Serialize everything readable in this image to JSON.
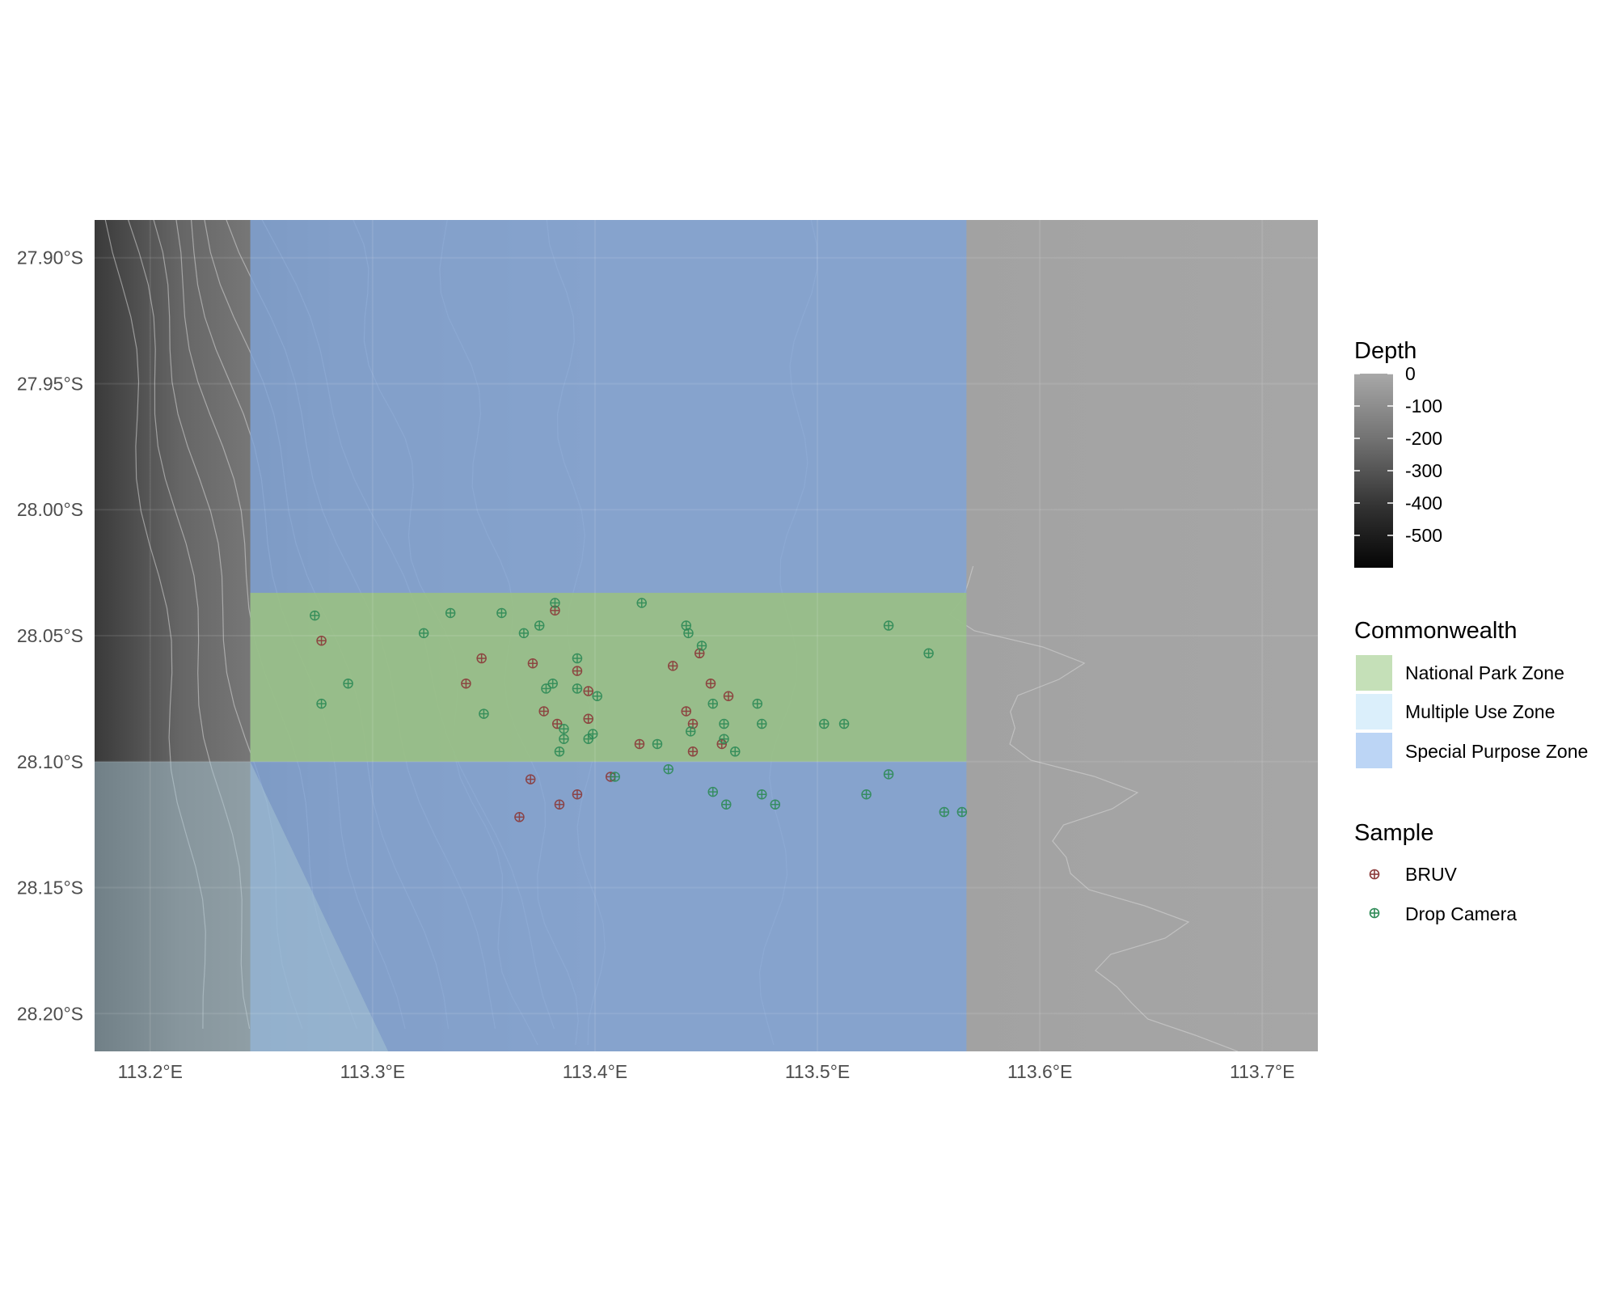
{
  "map": {
    "xlim": [
      113.175,
      113.725
    ],
    "ylim": [
      -28.215,
      -27.885
    ],
    "x_ticks": [
      {
        "value": 113.2,
        "label": "113.2°E"
      },
      {
        "value": 113.3,
        "label": "113.3°E"
      },
      {
        "value": 113.4,
        "label": "113.4°E"
      },
      {
        "value": 113.5,
        "label": "113.5°E"
      },
      {
        "value": 113.6,
        "label": "113.6°E"
      },
      {
        "value": 113.7,
        "label": "113.7°E"
      }
    ],
    "y_ticks": [
      {
        "value": -27.9,
        "label": "27.90°S"
      },
      {
        "value": -27.95,
        "label": "27.95°S"
      },
      {
        "value": -28.0,
        "label": "28.00°S"
      },
      {
        "value": -28.05,
        "label": "28.05°S"
      },
      {
        "value": -28.1,
        "label": "28.10°S"
      },
      {
        "value": -28.15,
        "label": "28.15°S"
      },
      {
        "value": -28.2,
        "label": "28.20°S"
      }
    ],
    "grid": true
  },
  "zones": {
    "special_purpose": {
      "lon": [
        113.245,
        113.567
      ],
      "lat": [
        -28.215,
        -27.885
      ],
      "color": "#7fa4d8"
    },
    "national_park": {
      "lon": [
        113.245,
        113.567
      ],
      "lat": [
        -28.1,
        -28.033
      ],
      "color": "#9bc27f"
    },
    "west_overlay": {
      "polygon": [
        [
          113.175,
          -28.1
        ],
        [
          113.245,
          -28.1
        ],
        [
          113.307,
          -28.215
        ],
        [
          113.175,
          -28.215
        ]
      ],
      "color": "#a8c6d4"
    }
  },
  "legend": {
    "depth": {
      "title": "Depth",
      "labels": [
        "0",
        "-100",
        "-200",
        "-300",
        "-400",
        "-500"
      ],
      "values": [
        0,
        -100,
        -200,
        -300,
        -400,
        -500
      ],
      "range": [
        -600,
        0
      ]
    },
    "commonwealth": {
      "title": "Commonwealth",
      "items": [
        {
          "label": "National Park Zone",
          "color": "#c5e0b8"
        },
        {
          "label": "Multiple Use Zone",
          "color": "#dbeffb"
        },
        {
          "label": "Special Purpose Zone",
          "color": "#bcd5f5"
        }
      ]
    },
    "sample": {
      "title": "Sample",
      "items": [
        {
          "label": "BRUV",
          "color": "#8b3a3a"
        },
        {
          "label": "Drop Camera",
          "color": "#2e8b57"
        }
      ]
    }
  },
  "samples": {
    "bruv": [
      [
        113.277,
        -28.052
      ],
      [
        113.342,
        -28.069
      ],
      [
        113.349,
        -28.059
      ],
      [
        113.372,
        -28.061
      ],
      [
        113.377,
        -28.08
      ],
      [
        113.383,
        -28.085
      ],
      [
        113.392,
        -28.064
      ],
      [
        113.397,
        -28.083
      ],
      [
        113.397,
        -28.072
      ],
      [
        113.382,
        -28.04
      ],
      [
        113.371,
        -28.107
      ],
      [
        113.384,
        -28.117
      ],
      [
        113.392,
        -28.113
      ],
      [
        113.366,
        -28.122
      ],
      [
        113.407,
        -28.106
      ],
      [
        113.42,
        -28.093
      ],
      [
        113.435,
        -28.062
      ],
      [
        113.441,
        -28.08
      ],
      [
        113.444,
        -28.085
      ],
      [
        113.444,
        -28.096
      ],
      [
        113.447,
        -28.057
      ],
      [
        113.452,
        -28.069
      ],
      [
        113.457,
        -28.093
      ],
      [
        113.46,
        -28.074
      ]
    ],
    "drop_camera": [
      [
        113.274,
        -28.042
      ],
      [
        113.277,
        -28.077
      ],
      [
        113.289,
        -28.069
      ],
      [
        113.323,
        -28.049
      ],
      [
        113.335,
        -28.041
      ],
      [
        113.35,
        -28.081
      ],
      [
        113.358,
        -28.041
      ],
      [
        113.368,
        -28.049
      ],
      [
        113.375,
        -28.046
      ],
      [
        113.378,
        -28.071
      ],
      [
        113.381,
        -28.069
      ],
      [
        113.382,
        -28.037
      ],
      [
        113.384,
        -28.096
      ],
      [
        113.386,
        -28.087
      ],
      [
        113.386,
        -28.091
      ],
      [
        113.392,
        -28.059
      ],
      [
        113.392,
        -28.071
      ],
      [
        113.397,
        -28.091
      ],
      [
        113.399,
        -28.089
      ],
      [
        113.401,
        -28.074
      ],
      [
        113.409,
        -28.106
      ],
      [
        113.421,
        -28.037
      ],
      [
        113.428,
        -28.093
      ],
      [
        113.433,
        -28.103
      ],
      [
        113.441,
        -28.046
      ],
      [
        113.442,
        -28.049
      ],
      [
        113.443,
        -28.088
      ],
      [
        113.448,
        -28.054
      ],
      [
        113.453,
        -28.077
      ],
      [
        113.453,
        -28.112
      ],
      [
        113.458,
        -28.085
      ],
      [
        113.458,
        -28.091
      ],
      [
        113.459,
        -28.117
      ],
      [
        113.463,
        -28.096
      ],
      [
        113.473,
        -28.077
      ],
      [
        113.475,
        -28.085
      ],
      [
        113.475,
        -28.113
      ],
      [
        113.481,
        -28.117
      ],
      [
        113.503,
        -28.085
      ],
      [
        113.512,
        -28.085
      ],
      [
        113.522,
        -28.113
      ],
      [
        113.532,
        -28.046
      ],
      [
        113.532,
        -28.105
      ],
      [
        113.55,
        -28.057
      ],
      [
        113.557,
        -28.12
      ],
      [
        113.565,
        -28.12
      ]
    ]
  }
}
